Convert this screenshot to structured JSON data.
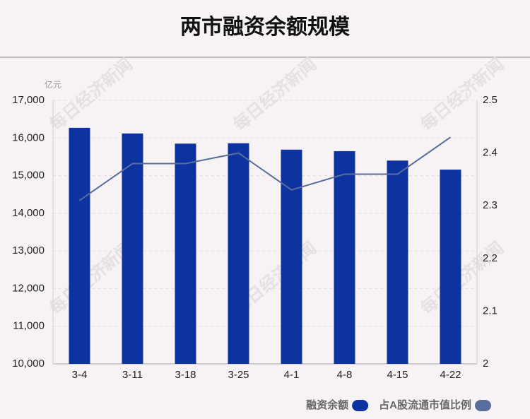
{
  "chart_data": {
    "type": "bar",
    "title": "两市融资余额规模",
    "y_label": "亿元",
    "watermark": "每日经济新闻",
    "categories": [
      "3-4",
      "3-11",
      "3-18",
      "3-25",
      "4-1",
      "4-8",
      "4-15",
      "4-22"
    ],
    "series": [
      {
        "name": "融资余额",
        "type": "bar",
        "color": "#0d33a0",
        "values": [
          16270,
          16120,
          15850,
          15860,
          15690,
          15650,
          15400,
          15160
        ]
      },
      {
        "name": "占A股流通市值比例",
        "type": "line",
        "axis": "y2",
        "color": "#5a6e9b",
        "values": [
          2.31,
          2.38,
          2.38,
          2.4,
          2.33,
          2.36,
          2.36,
          2.43
        ]
      }
    ],
    "ylim": [
      10000,
      17000
    ],
    "yticks": [
      {
        "value": 10000,
        "label": "10,000"
      },
      {
        "value": 11000,
        "label": "11,000"
      },
      {
        "value": 12000,
        "label": "12,000"
      },
      {
        "value": 13000,
        "label": "13,000"
      },
      {
        "value": 14000,
        "label": "14,000"
      },
      {
        "value": 15000,
        "label": "15,000"
      },
      {
        "value": 16000,
        "label": "16,000"
      },
      {
        "value": 17000,
        "label": "17,000"
      }
    ],
    "y2lim": [
      2,
      2.5
    ],
    "y2ticks": [
      2,
      2.1,
      2.2,
      2.3,
      2.4,
      2.5
    ],
    "grid": true,
    "legend": "bottom-right"
  }
}
